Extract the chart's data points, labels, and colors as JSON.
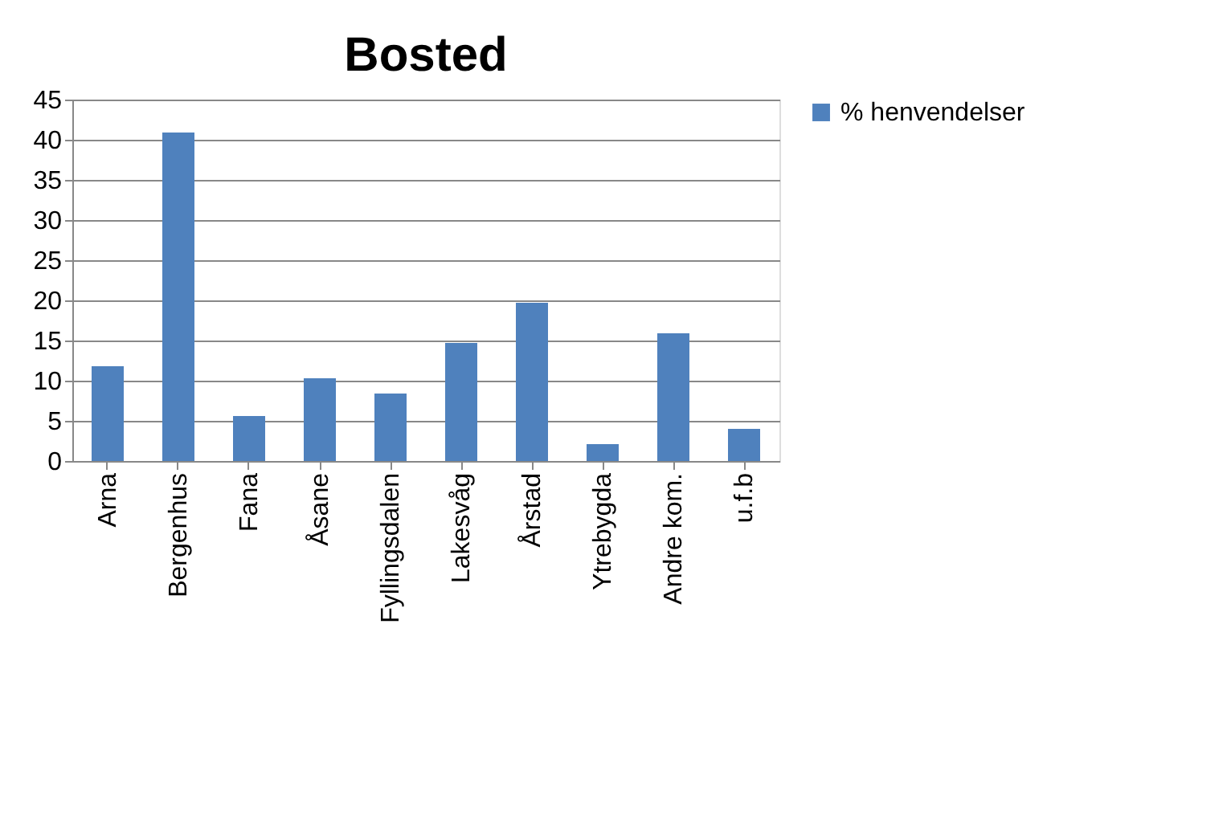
{
  "chart_data": {
    "type": "bar",
    "title": "Bosted",
    "categories": [
      "Arna",
      "Bergenhus",
      "Fana",
      "Åsane",
      "Fyllingsdalen",
      "Lakesvåg",
      "Årstad",
      "Ytrebygda",
      "Andre kom.",
      "u.f.b"
    ],
    "series": [
      {
        "name": "% henvendelser",
        "color": "#4f81bd",
        "values": [
          11.8,
          40.9,
          5.6,
          10.3,
          8.4,
          14.7,
          19.7,
          2.1,
          15.9,
          4.0
        ]
      }
    ],
    "ylim": [
      0,
      45
    ],
    "yticks": [
      0,
      5,
      10,
      15,
      20,
      25,
      30,
      35,
      40,
      45
    ],
    "grid": "y",
    "legend": "right"
  }
}
